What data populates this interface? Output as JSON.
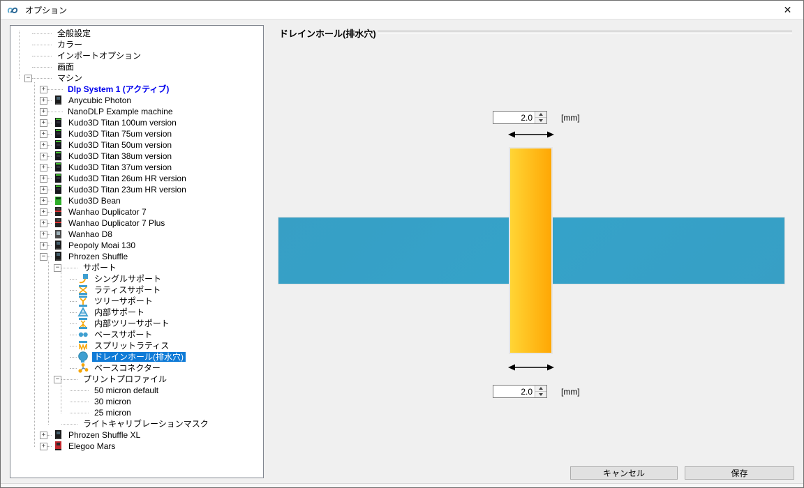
{
  "window": {
    "title": "オプション",
    "close_glyph": "✕"
  },
  "panel": {
    "title": "ドレインホール(排水穴)"
  },
  "controls": {
    "top_value": "2.0",
    "top_unit": "[mm]",
    "bottom_value": "2.0",
    "bottom_unit": "[mm]"
  },
  "buttons": {
    "cancel": "キャンセル",
    "save": "保存"
  },
  "colors": {
    "accent_selection": "#0f7bd7",
    "active_machine_text": "#0000ee",
    "slab_blue": "#379fc5",
    "hole_yellow": "#ffd535",
    "hole_orange": "#ffa704",
    "icon_blue": "#3f9fd0",
    "icon_orange": "#f7a500"
  },
  "tree": {
    "nodes": [
      {
        "label": "全般設定",
        "level": 0
      },
      {
        "label": "カラー",
        "level": 0
      },
      {
        "label": "インポートオプション",
        "level": 0
      },
      {
        "label": "画面",
        "level": 0
      },
      {
        "label": "マシン",
        "level": 0,
        "expand": "-"
      },
      {
        "label": "Dlp System 1 (アクティブ)",
        "level": 1,
        "expand": "+",
        "active": true
      },
      {
        "label": "Anycubic Photon",
        "level": 1,
        "expand": "+",
        "icon": "printer-black"
      },
      {
        "label": "NanoDLP Example machine",
        "level": 1,
        "expand": "+"
      },
      {
        "label": "Kudo3D Titan 100um version",
        "level": 1,
        "expand": "+",
        "icon": "printer-titan"
      },
      {
        "label": "Kudo3D Titan 75um version",
        "level": 1,
        "expand": "+",
        "icon": "printer-titan"
      },
      {
        "label": "Kudo3D Titan 50um version",
        "level": 1,
        "expand": "+",
        "icon": "printer-titan"
      },
      {
        "label": "Kudo3D Titan 38um version",
        "level": 1,
        "expand": "+",
        "icon": "printer-titan"
      },
      {
        "label": "Kudo3D Titan 37um version",
        "level": 1,
        "expand": "+",
        "icon": "printer-titan"
      },
      {
        "label": "Kudo3D Titan 26um HR version",
        "level": 1,
        "expand": "+",
        "icon": "printer-titan"
      },
      {
        "label": "Kudo3D Titan 23um HR version",
        "level": 1,
        "expand": "+",
        "icon": "printer-titan"
      },
      {
        "label": "Kudo3D Bean",
        "level": 1,
        "expand": "+",
        "icon": "printer-green"
      },
      {
        "label": "Wanhao Duplicator 7",
        "level": 1,
        "expand": "+",
        "icon": "printer-redstripe"
      },
      {
        "label": "Wanhao Duplicator 7 Plus",
        "level": 1,
        "expand": "+",
        "icon": "printer-redstripe"
      },
      {
        "label": "Wanhao D8",
        "level": 1,
        "expand": "+",
        "icon": "printer-gray"
      },
      {
        "label": "Peopoly Moai 130",
        "level": 1,
        "expand": "+",
        "icon": "printer-black"
      },
      {
        "label": "Phrozen Shuffle",
        "level": 1,
        "expand": "-",
        "icon": "printer-black"
      },
      {
        "label": "サポート",
        "level": 2,
        "expand": "-"
      },
      {
        "label": "シングルサポート",
        "level": 3,
        "icon": "single-support"
      },
      {
        "label": "ラティスサポート",
        "level": 3,
        "icon": "lattice-support"
      },
      {
        "label": "ツリーサポート",
        "level": 3,
        "icon": "tree-support"
      },
      {
        "label": "内部サポート",
        "level": 3,
        "icon": "internal-support"
      },
      {
        "label": "内部ツリーサポート",
        "level": 3,
        "icon": "internal-tree-support"
      },
      {
        "label": "ベースサポート",
        "level": 3,
        "icon": "base-support"
      },
      {
        "label": "スプリットラティス",
        "level": 3,
        "icon": "split-lattice"
      },
      {
        "label": "ドレインホール(排水穴)",
        "level": 3,
        "icon": "drain-hole",
        "selected": true
      },
      {
        "label": "ベースコネクター",
        "level": 3,
        "icon": "base-connector"
      },
      {
        "label": "プリントプロファイル",
        "level": 2,
        "expand": "-"
      },
      {
        "label": "50 micron default",
        "level": 3
      },
      {
        "label": "30 micron",
        "level": 3
      },
      {
        "label": "25 micron",
        "level": 3
      },
      {
        "label": "ライトキャリブレーションマスク",
        "level": 2
      },
      {
        "label": "Phrozen Shuffle XL",
        "level": 1,
        "expand": "+",
        "icon": "printer-black"
      },
      {
        "label": "Elegoo Mars",
        "level": 1,
        "expand": "+",
        "icon": "printer-red"
      }
    ]
  }
}
